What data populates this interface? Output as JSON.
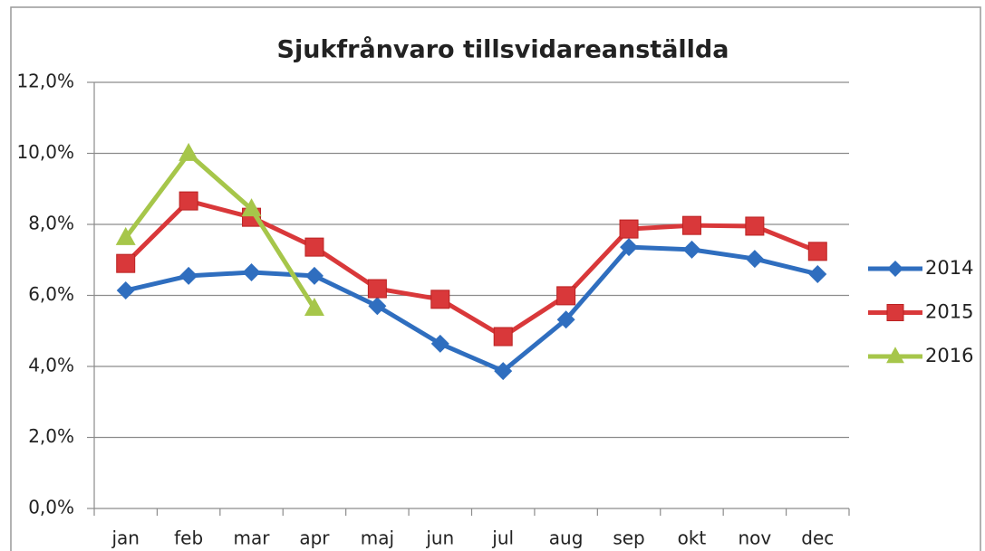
{
  "chart_data": {
    "type": "line",
    "title": "Sjukfrånvaro  tillsvidareanställda",
    "categories": [
      "jan",
      "feb",
      "mar",
      "apr",
      "maj",
      "jun",
      "jul",
      "aug",
      "sep",
      "okt",
      "nov",
      "dec"
    ],
    "series": [
      {
        "name": "2014",
        "color": "#2f6ebf",
        "marker": "diamond",
        "values": [
          6.14,
          6.55,
          6.65,
          6.55,
          5.7,
          4.64,
          3.87,
          5.32,
          7.36,
          7.29,
          7.03,
          6.6
        ]
      },
      {
        "name": "2015",
        "color": "#d9383a",
        "marker": "square",
        "values": [
          6.9,
          8.66,
          8.2,
          7.36,
          6.19,
          5.89,
          4.84,
          5.99,
          7.87,
          7.97,
          7.95,
          7.24
        ]
      },
      {
        "name": "2016",
        "color": "#a6c64a",
        "marker": "triangle",
        "values": [
          7.62,
          9.99,
          8.43,
          5.63,
          null,
          null,
          null,
          null,
          null,
          null,
          null,
          null
        ]
      }
    ],
    "ylim": [
      0,
      12
    ],
    "yticks": [
      {
        "value": 0,
        "label": "0,0%"
      },
      {
        "value": 2,
        "label": "2,0%"
      },
      {
        "value": 4,
        "label": "4,0%"
      },
      {
        "value": 6,
        "label": "6,0%"
      },
      {
        "value": 8,
        "label": "8,0%"
      },
      {
        "value": 10,
        "label": "10,0%"
      },
      {
        "value": 12,
        "label": "12,0%"
      }
    ],
    "grid": true,
    "legend": "right"
  }
}
